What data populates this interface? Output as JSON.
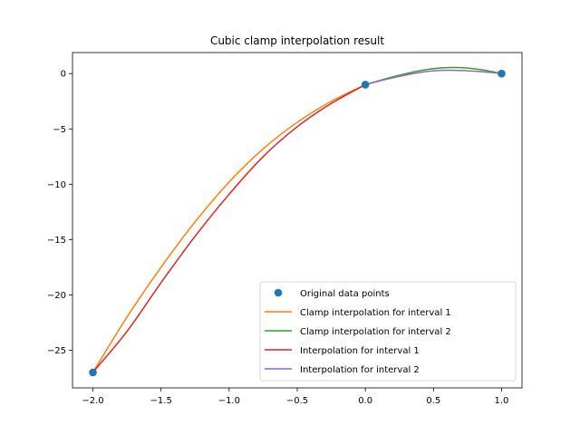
{
  "chart_data": {
    "type": "line",
    "title": "Cubic clamp interpolation result",
    "xlabel": "",
    "ylabel": "",
    "xlim": [
      -2.15,
      1.15
    ],
    "ylim": [
      -28.4,
      1.9
    ],
    "xticks": [
      -2.0,
      -1.5,
      -1.0,
      -0.5,
      0.0,
      0.5,
      1.0
    ],
    "xtick_labels": [
      "−2.0",
      "−1.5",
      "−1.0",
      "−0.5",
      "0.0",
      "0.5",
      "1.0"
    ],
    "yticks": [
      0,
      -5,
      -10,
      -15,
      -20,
      -25
    ],
    "ytick_labels": [
      "0",
      "−5",
      "−10",
      "−15",
      "−20",
      "−25"
    ],
    "grid": false,
    "legend_position": "lower-right",
    "points": {
      "name": "Original data points",
      "color": "#1f77b4",
      "x": [
        -2,
        0,
        1
      ],
      "y": [
        -27,
        -1,
        0
      ]
    },
    "series": [
      {
        "name": "Clamp interpolation for interval 1",
        "color": "#ff7f0e",
        "x": [
          -2.0,
          -1.75,
          -1.5,
          -1.25,
          -1.0,
          -0.75,
          -0.5,
          -0.25,
          0.0
        ],
        "y": [
          -27.0,
          -22.0,
          -17.5,
          -13.4,
          -9.8,
          -6.8,
          -4.4,
          -2.5,
          -1.0
        ]
      },
      {
        "name": "Clamp interpolation for interval 2",
        "color": "#2ca02c",
        "x": [
          0.0,
          0.125,
          0.25,
          0.375,
          0.5,
          0.625,
          0.75,
          0.875,
          1.0
        ],
        "y": [
          -1.0,
          -0.55,
          -0.15,
          0.2,
          0.45,
          0.55,
          0.5,
          0.3,
          0.0
        ]
      },
      {
        "name": "Interpolation for interval 1",
        "color": "#d62728",
        "x": [
          -2.0,
          -1.75,
          -1.5,
          -1.25,
          -1.0,
          -0.75,
          -0.5,
          -0.25,
          0.0
        ],
        "y": [
          -27.0,
          -23.3,
          -18.9,
          -14.7,
          -10.9,
          -7.5,
          -4.8,
          -2.7,
          -1.0
        ]
      },
      {
        "name": "Interpolation for interval 2",
        "color": "#9467bd",
        "x": [
          0.0,
          0.125,
          0.25,
          0.375,
          0.5,
          0.625,
          0.75,
          0.875,
          1.0
        ],
        "y": [
          -1.0,
          -0.6,
          -0.25,
          0.05,
          0.25,
          0.3,
          0.25,
          0.15,
          0.0
        ]
      }
    ]
  }
}
